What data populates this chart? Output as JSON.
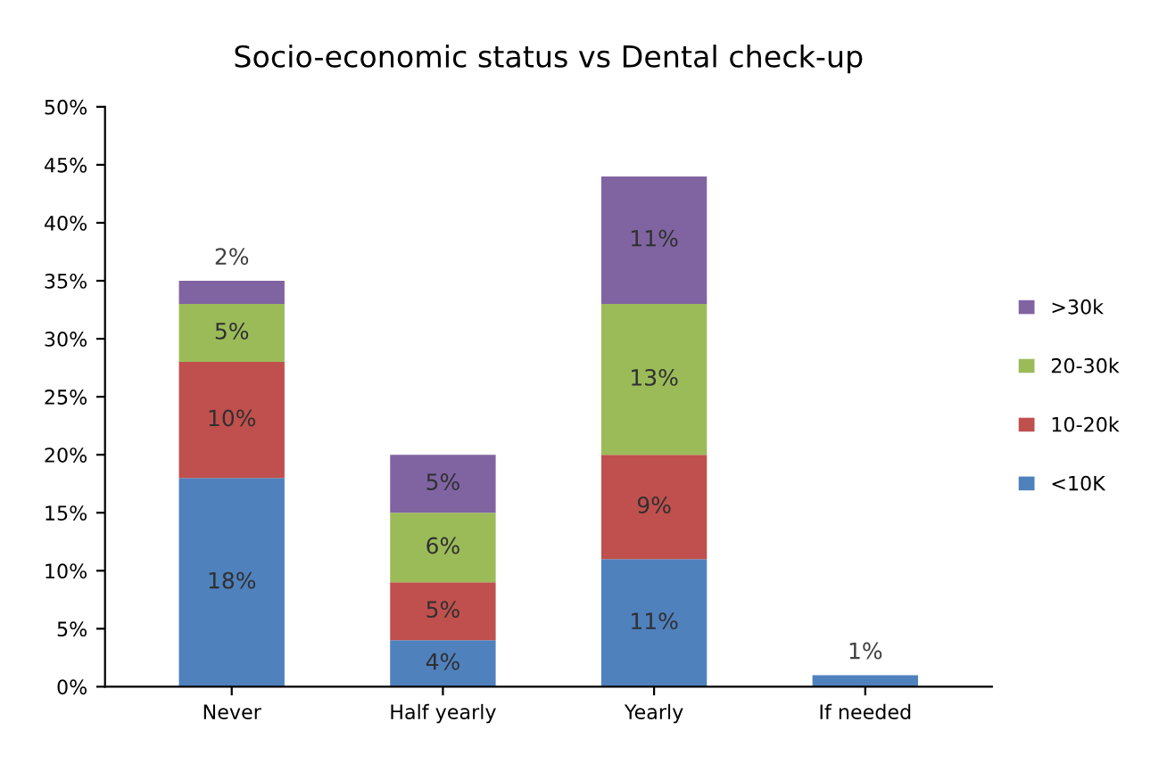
{
  "chart_data": {
    "type": "bar",
    "title": "Socio-economic status vs Dental check-up",
    "stacked": true,
    "categories": [
      "Never",
      "Half yearly",
      "Yearly",
      "If needed"
    ],
    "series": [
      {
        "name": "<10K",
        "color": "#4f81bd",
        "values": [
          18,
          4,
          11,
          1
        ],
        "value_labels": [
          "18%",
          "4%",
          "11%",
          "1%"
        ]
      },
      {
        "name": "10-20k",
        "color": "#c0504d",
        "values": [
          10,
          5,
          9,
          0
        ],
        "value_labels": [
          "10%",
          "5%",
          "9%",
          null
        ]
      },
      {
        "name": "20-30k",
        "color": "#9bbb59",
        "values": [
          5,
          6,
          13,
          0
        ],
        "value_labels": [
          "5%",
          "6%",
          "13%",
          null
        ]
      },
      {
        "name": ">30k",
        "color": "#8064a2",
        "values": [
          2,
          5,
          11,
          0
        ],
        "value_labels": [
          "2%",
          "5%",
          "11%",
          null
        ]
      }
    ],
    "ylim": [
      0,
      50
    ],
    "yticks": [
      {
        "value": 0,
        "label": "0%"
      },
      {
        "value": 5,
        "label": "5%"
      },
      {
        "value": 10,
        "label": "10%"
      },
      {
        "value": 15,
        "label": "15%"
      },
      {
        "value": 20,
        "label": "20%"
      },
      {
        "value": 25,
        "label": "25%"
      },
      {
        "value": 30,
        "label": "30%"
      },
      {
        "value": 35,
        "label": "35%"
      },
      {
        "value": 40,
        "label": "40%"
      },
      {
        "value": 45,
        "label": "45%"
      },
      {
        "value": 50,
        "label": "50%"
      }
    ],
    "grid": false,
    "legend": "right"
  }
}
